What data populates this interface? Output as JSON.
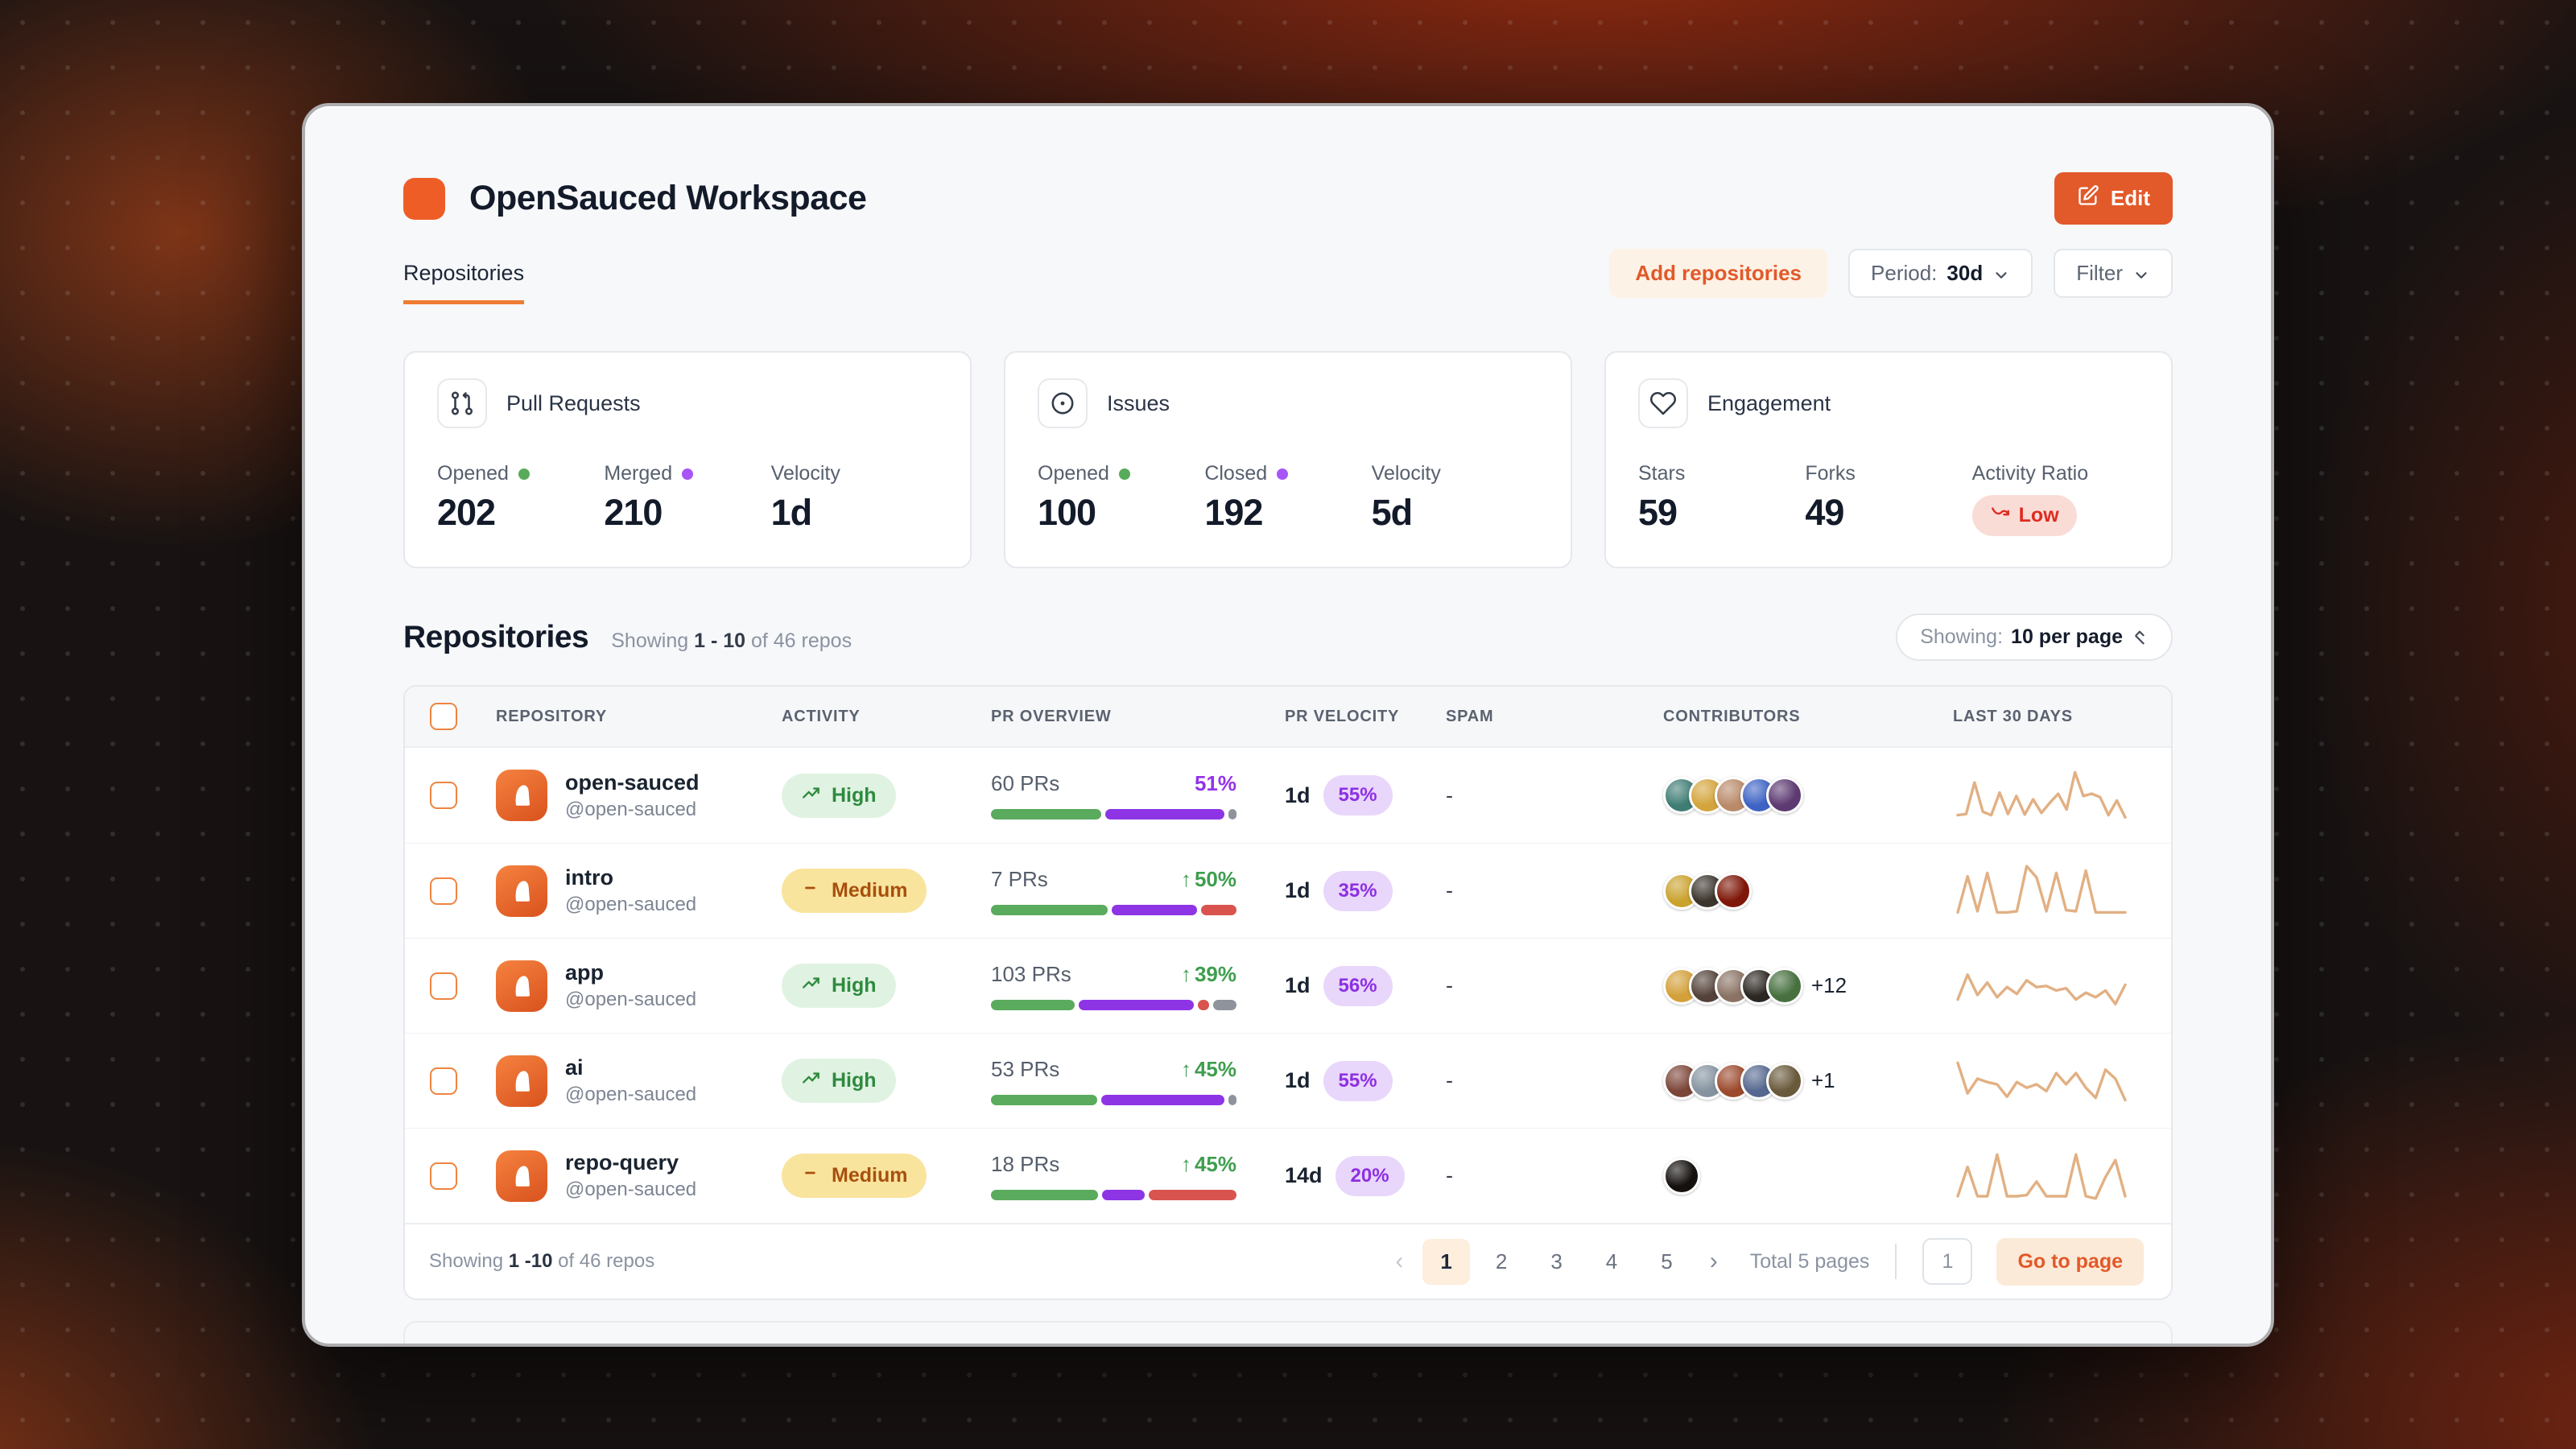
{
  "workspace": {
    "title": "OpenSauced Workspace",
    "edit_label": "Edit"
  },
  "tabs": {
    "repositories_label": "Repositories"
  },
  "toolbar": {
    "add_repositories_label": "Add repositories",
    "period_label": "Period:",
    "period_value": "30d",
    "filter_label": "Filter"
  },
  "colors": {
    "brand_orange": "#e2592a",
    "green": "#5aab5d",
    "purple": "#8d35e5",
    "red": "#d9544e",
    "gray": "#8f949c",
    "sparkline": "#e2b083"
  },
  "stat_cards": [
    {
      "title": "Pull Requests",
      "icon": "pull-request-icon",
      "stats": [
        {
          "label": "Opened",
          "dot": "#57ab5a",
          "value": "202"
        },
        {
          "label": "Merged",
          "dot": "#a855f7",
          "value": "210"
        },
        {
          "label": "Velocity",
          "value": "1d"
        }
      ]
    },
    {
      "title": "Issues",
      "icon": "issue-icon",
      "stats": [
        {
          "label": "Opened",
          "dot": "#57ab5a",
          "value": "100"
        },
        {
          "label": "Closed",
          "dot": "#a855f7",
          "value": "192"
        },
        {
          "label": "Velocity",
          "value": "5d"
        }
      ]
    },
    {
      "title": "Engagement",
      "icon": "heart-icon",
      "stats": [
        {
          "label": "Stars",
          "value": "59"
        },
        {
          "label": "Forks",
          "value": "49"
        },
        {
          "label": "Activity Ratio",
          "badge": {
            "text": "Low",
            "icon": "trend-down-icon"
          }
        }
      ]
    }
  ],
  "repositories_section": {
    "title": "Repositories",
    "showing_prefix": "Showing",
    "showing_range": "1 - 10",
    "showing_suffix": "of 46 repos",
    "per_page_label": "Showing:",
    "per_page_value": "10 per page"
  },
  "table": {
    "headers": [
      "REPOSITORY",
      "ACTIVITY",
      "PR OVERVIEW",
      "PR VELOCITY",
      "SPAM",
      "CONTRIBUTORS",
      "LAST 30 DAYS"
    ],
    "rows": [
      {
        "name": "open-sauced",
        "handle": "@open-sauced",
        "activity": "High",
        "activity_level": "high",
        "prs": "60 PRs",
        "change_pct": "51%",
        "change_arrow": false,
        "change_color": "#9333ea",
        "bar": [
          {
            "color": "#5aab5d",
            "pct": 46
          },
          {
            "color": "#8d35e5",
            "pct": 50
          },
          {
            "color": "#8f949c",
            "pct": 2
          }
        ],
        "velocity": "1d",
        "velocity_pct": "55%",
        "spam": "-",
        "contributors": {
          "avatars": [
            "#3f7d74",
            "#d3a43c",
            "#b98a6a",
            "#3e63c4",
            "#5d3a72"
          ],
          "extra": ""
        },
        "spark": [
          12,
          14,
          70,
          18,
          12,
          52,
          14,
          46,
          13,
          40,
          16,
          34,
          50,
          22,
          88,
          46,
          50,
          44,
          12,
          38,
          8
        ]
      },
      {
        "name": "intro",
        "handle": "@open-sauced",
        "activity": "Medium",
        "activity_level": "medium",
        "prs": "7 PRs",
        "change_pct": "50%",
        "change_arrow": true,
        "change_color": "#3f9e4e",
        "bar": [
          {
            "color": "#5aab5d",
            "pct": 49
          },
          {
            "color": "#8d35e5",
            "pct": 36
          },
          {
            "color": "#d9544e",
            "pct": 15
          }
        ],
        "velocity": "1d",
        "velocity_pct": "35%",
        "spam": "-",
        "contributors": {
          "avatars": [
            "#caa22e",
            "#3c352e",
            "#7e1708"
          ],
          "extra": ""
        },
        "spark": [
          8,
          72,
          10,
          78,
          8,
          8,
          10,
          90,
          70,
          10,
          78,
          12,
          10,
          82,
          8,
          8,
          8,
          8
        ]
      },
      {
        "name": "app",
        "handle": "@open-sauced",
        "activity": "High",
        "activity_level": "high",
        "prs": "103 PRs",
        "change_pct": "39%",
        "change_arrow": true,
        "change_color": "#3f9e4e",
        "bar": [
          {
            "color": "#5aab5d",
            "pct": 36
          },
          {
            "color": "#8d35e5",
            "pct": 49
          },
          {
            "color": "#d9544e",
            "pct": 5
          },
          {
            "color": "#8f949c",
            "pct": 10
          }
        ],
        "velocity": "1d",
        "velocity_pct": "56%",
        "spam": "-",
        "contributors": {
          "avatars": [
            "#d3a03a",
            "#54423a",
            "#8a7364",
            "#2c2722",
            "#47703f"
          ],
          "extra": "+12"
        },
        "spark": [
          22,
          66,
          30,
          52,
          26,
          44,
          32,
          56,
          44,
          46,
          38,
          42,
          22,
          34,
          26,
          38,
          14,
          48
        ]
      },
      {
        "name": "ai",
        "handle": "@open-sauced",
        "activity": "High",
        "activity_level": "high",
        "prs": "53 PRs",
        "change_pct": "45%",
        "change_arrow": true,
        "change_color": "#3f9e4e",
        "bar": [
          {
            "color": "#5aab5d",
            "pct": 45
          },
          {
            "color": "#8d35e5",
            "pct": 52
          },
          {
            "color": "#8f949c",
            "pct": 3
          }
        ],
        "velocity": "1d",
        "velocity_pct": "55%",
        "spam": "-",
        "contributors": {
          "avatars": [
            "#7c4538",
            "#8593a0",
            "#9c4a2e",
            "#56688f",
            "#6a5a3c"
          ],
          "extra": "+1"
        },
        "spark": [
          78,
          24,
          50,
          44,
          40,
          18,
          44,
          34,
          40,
          28,
          60,
          40,
          60,
          34,
          16,
          66,
          50,
          12
        ]
      },
      {
        "name": "repo-query",
        "handle": "@open-sauced",
        "activity": "Medium",
        "activity_level": "medium",
        "prs": "18 PRs",
        "change_pct": "45%",
        "change_arrow": true,
        "change_color": "#3f9e4e",
        "bar": [
          {
            "color": "#5aab5d",
            "pct": 45
          },
          {
            "color": "#8d35e5",
            "pct": 18
          },
          {
            "color": "#d9544e",
            "pct": 37
          }
        ],
        "velocity": "14d",
        "velocity_pct": "20%",
        "spam": "-",
        "contributors": {
          "avatars": [
            "#15110f"
          ],
          "extra": ""
        },
        "spark": [
          10,
          62,
          10,
          10,
          84,
          10,
          10,
          12,
          36,
          10,
          10,
          10,
          84,
          10,
          6,
          44,
          74,
          10
        ]
      }
    ]
  },
  "pagination": {
    "showing_prefix": "Showing",
    "showing_bold": "1 -10",
    "showing_suffix": "of 46 repos",
    "prev_icon": "‹",
    "next_icon": "›",
    "pages": [
      "1",
      "2",
      "3",
      "4",
      "5"
    ],
    "active_page": "1",
    "total_label": "Total 5 pages",
    "input_value": "1",
    "go_label": "Go to page"
  }
}
